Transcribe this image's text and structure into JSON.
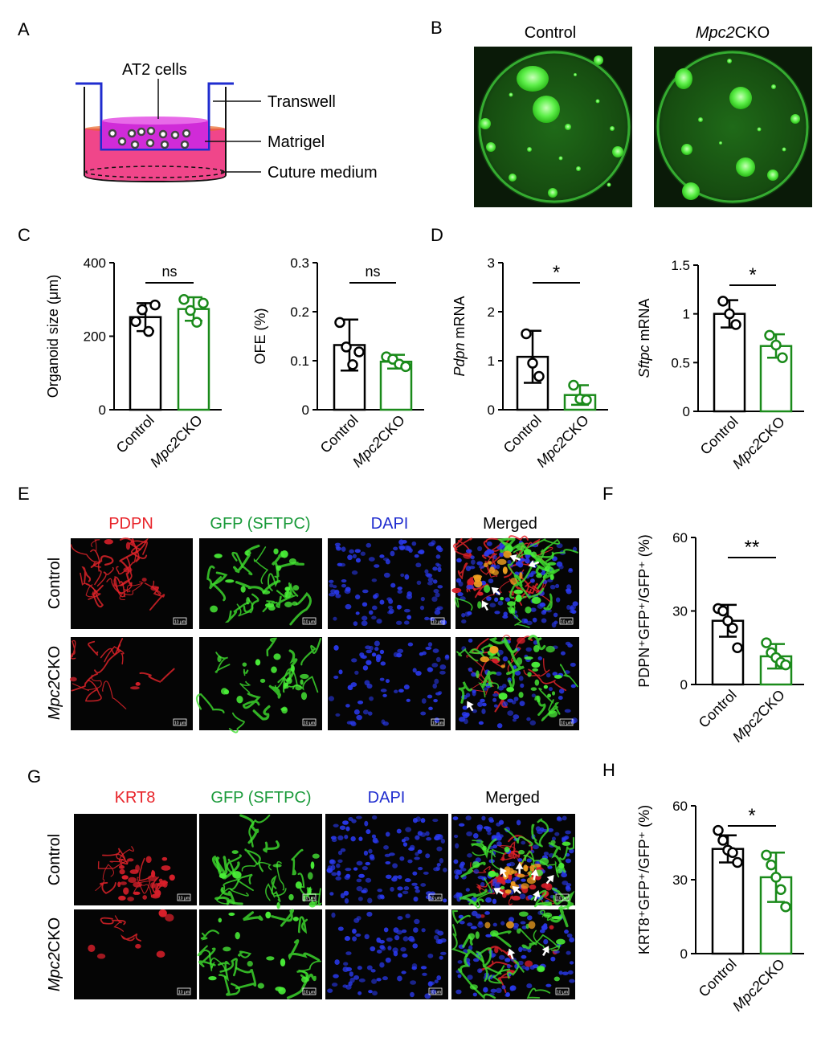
{
  "colors": {
    "control": "#000000",
    "cko": "#1a8a1a",
    "pdpn": "#e8242a",
    "krt8": "#e8242a",
    "gfp": "#1a9a3a",
    "dapi": "#1f2ccf",
    "matrigel": "#f0468a"
  },
  "panelA": {
    "letter": "A",
    "labels": {
      "cells": "AT2 cells",
      "transwell": "Transwell",
      "matrigel": "Matrigel",
      "medium": "Cuture medium"
    }
  },
  "panelB": {
    "letter": "B",
    "control_title": "Control",
    "cko_title_italic": "Mpc2",
    "cko_title_rest": "CKO"
  },
  "panelC": {
    "letter": "C"
  },
  "panelD": {
    "letter": "D"
  },
  "panelE": {
    "letter": "E",
    "columns": [
      "PDPN",
      "GFP (SFTPC)",
      "DAPI",
      "Merged"
    ],
    "row_control": "Control",
    "row_cko_italic": "Mpc2",
    "row_cko_rest": "CKO",
    "scale": "10 μm"
  },
  "panelF": {
    "letter": "F"
  },
  "panelG": {
    "letter": "G",
    "columns": [
      "KRT8",
      "GFP (SFTPC)",
      "DAPI",
      "Merged"
    ],
    "row_control": "Control",
    "row_cko_italic": "Mpc2",
    "row_cko_rest": "CKO",
    "scale": "10 μm"
  },
  "panelH": {
    "letter": "H"
  },
  "chart_data": [
    {
      "type": "bar",
      "panel": "C",
      "categories": [
        "Control",
        "Mpc2CKO"
      ],
      "ylabel": "Organoid size (μm)",
      "ylim": [
        0,
        400
      ],
      "yticks": [
        0,
        200,
        400
      ],
      "means": [
        252,
        274
      ],
      "sd": [
        38,
        32
      ],
      "points": [
        [
          240,
          272,
          213,
          285
        ],
        [
          300,
          270,
          238,
          290
        ]
      ],
      "significance": "ns"
    },
    {
      "type": "bar",
      "panel": "C",
      "categories": [
        "Control",
        "Mpc2CKO"
      ],
      "ylabel": "OFE (%)",
      "ylim": [
        0,
        0.3
      ],
      "yticks": [
        0,
        0.1,
        0.2,
        0.3
      ],
      "means": [
        0.132,
        0.098
      ],
      "sd": [
        0.052,
        0.014
      ],
      "points": [
        [
          0.178,
          0.128,
          0.092,
          0.118
        ],
        [
          0.108,
          0.103,
          0.093,
          0.088
        ]
      ],
      "significance": "ns"
    },
    {
      "type": "bar",
      "panel": "D",
      "categories": [
        "Control",
        "Mpc2CKO"
      ],
      "ylabel_italic": "Pdpn",
      "ylabel_rest": " mRNA",
      "ylim": [
        0,
        3
      ],
      "yticks": [
        0,
        1,
        2,
        3
      ],
      "means": [
        1.08,
        0.3
      ],
      "sd": [
        0.53,
        0.2
      ],
      "points": [
        [
          1.55,
          0.95,
          0.68
        ],
        [
          0.5,
          0.22,
          0.2
        ]
      ],
      "significance": "*"
    },
    {
      "type": "bar",
      "panel": "D",
      "categories": [
        "Control",
        "Mpc2CKO"
      ],
      "ylabel_italic": "Sftpc",
      "ylabel_rest": " mRNA",
      "ylim": [
        0,
        1.5
      ],
      "yticks": [
        0,
        0.5,
        1,
        1.5
      ],
      "ytick_labels": [
        "0",
        "0.5",
        "1",
        "1.5"
      ],
      "means": [
        1.0,
        0.67
      ],
      "sd": [
        0.14,
        0.12
      ],
      "points": [
        [
          1.13,
          1.0,
          0.89
        ],
        [
          0.78,
          0.68,
          0.55
        ]
      ],
      "significance": "*"
    },
    {
      "type": "bar",
      "panel": "F",
      "categories": [
        "Control",
        "Mpc2CKO"
      ],
      "ylabel": "PDPN⁺GFP⁺/GFP⁺ (%)",
      "ylim": [
        0,
        60
      ],
      "yticks": [
        0,
        30,
        60
      ],
      "means": [
        26,
        11.5
      ],
      "sd": [
        6.5,
        5
      ],
      "points": [
        [
          31,
          30,
          26,
          23,
          15
        ],
        [
          17,
          13,
          11,
          9,
          8
        ]
      ],
      "significance": "**"
    },
    {
      "type": "bar",
      "panel": "H",
      "categories": [
        "Control",
        "Mpc2CKO"
      ],
      "ylabel": "KRT8⁺GFP⁺/GFP⁺ (%)",
      "ylim": [
        0,
        60
      ],
      "yticks": [
        0,
        30,
        60
      ],
      "means": [
        42.5,
        31
      ],
      "sd": [
        5.5,
        10
      ],
      "points": [
        [
          50,
          46,
          42,
          41,
          37
        ],
        [
          40,
          36,
          31,
          26,
          19
        ]
      ],
      "significance": "*"
    }
  ]
}
